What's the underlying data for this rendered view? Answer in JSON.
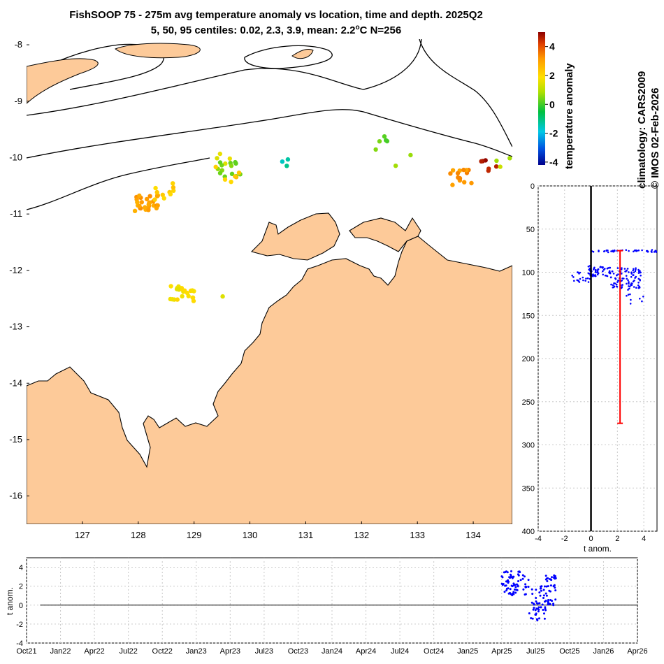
{
  "title": {
    "line1": "FishSOOP 75 - 275m avg temperature anomaly vs location, time and depth. 2025Q2",
    "line2_prefix": "5, 50, 95 centiles: 0.02, 2.3, 3.9, mean: 2.2",
    "line2_sup": "o",
    "line2_suffix": "C N=256"
  },
  "colorbar": {
    "label": "temperature anomaly",
    "ticks": [
      "4",
      "2",
      "0",
      "-2",
      "-4"
    ],
    "range": [
      -4.2,
      5
    ]
  },
  "side_text": {
    "climatology": "climatology: CARS2009",
    "copyright": "© IMOS 02-Feb-2026"
  },
  "chart_data": [
    {
      "type": "scatter",
      "name": "map",
      "x_ticks": [
        "127",
        "128",
        "129",
        "130",
        "131",
        "132",
        "133",
        "134"
      ],
      "y_ticks": [
        "-8",
        "-9",
        "-10",
        "-11",
        "-12",
        "-13",
        "-14",
        "-15",
        "-16"
      ],
      "xlim": [
        126,
        134.7
      ],
      "ylim": [
        -16.5,
        -7.9
      ],
      "clusters": [
        {
          "lon": 128.15,
          "lat": -10.8,
          "anomaly": 3.0,
          "n": 30
        },
        {
          "lon": 128.5,
          "lat": -10.6,
          "anomaly": 2.2,
          "n": 10
        },
        {
          "lon": 128.8,
          "lat": -12.4,
          "anomaly": 1.8,
          "n": 24
        },
        {
          "lon": 129.35,
          "lat": -12.55,
          "anomaly": 1.2,
          "n": 1
        },
        {
          "lon": 129.45,
          "lat": -10.05,
          "anomaly": 1.6,
          "n": 4
        },
        {
          "lon": 129.65,
          "lat": -10.2,
          "anomaly": 0.4,
          "n": 14
        },
        {
          "lon": 129.6,
          "lat": -10.3,
          "anomaly": 2.3,
          "n": 6
        },
        {
          "lon": 130.7,
          "lat": -10.13,
          "anomaly": -1.3,
          "n": 3
        },
        {
          "lon": 132.45,
          "lat": -9.72,
          "anomaly": 0.3,
          "n": 5
        },
        {
          "lon": 132.75,
          "lat": -10.02,
          "anomaly": 0.6,
          "n": 2
        },
        {
          "lon": 133.8,
          "lat": -10.35,
          "anomaly": 3.2,
          "n": 14
        },
        {
          "lon": 134.2,
          "lat": -10.1,
          "anomaly": 4.7,
          "n": 6
        },
        {
          "lon": 134.45,
          "lat": -10.03,
          "anomaly": 1.0,
          "n": 3
        }
      ]
    },
    {
      "type": "scatter",
      "name": "depth-profile",
      "xlabel": "t anom.",
      "ylabel": "",
      "xlim": [
        -4,
        5
      ],
      "ylim": [
        400,
        0
      ],
      "x_ticks": [
        "-4",
        "-2",
        "0",
        "2",
        "4"
      ],
      "y_ticks": [
        "0",
        "50",
        "100",
        "150",
        "200",
        "250",
        "300",
        "350",
        "400"
      ],
      "mean_bar": {
        "x": 2.2,
        "depth_top": 75,
        "depth_bottom": 275
      },
      "zero_line": 0,
      "point_groups": [
        {
          "x_range": [
            0,
            5
          ],
          "depth_range": [
            74,
            77
          ],
          "n": 40
        },
        {
          "x_range": [
            -0.2,
            1.5
          ],
          "depth_range": [
            92,
            105
          ],
          "n": 60
        },
        {
          "x_range": [
            1.5,
            3.8
          ],
          "depth_range": [
            95,
            120
          ],
          "n": 90
        },
        {
          "x_range": [
            -1.8,
            0.2
          ],
          "depth_range": [
            100,
            112
          ],
          "n": 20
        },
        {
          "x_range": [
            2.5,
            4
          ],
          "depth_range": [
            115,
            138
          ],
          "n": 10
        }
      ]
    },
    {
      "type": "scatter",
      "name": "time-series",
      "ylabel": "t anom.",
      "ylim": [
        -4,
        5
      ],
      "y_ticks": [
        "4",
        "2",
        "0",
        "-2",
        "-4"
      ],
      "x_ticks": [
        "Oct21",
        "Jan22",
        "Apr22",
        "Jul22",
        "Oct22",
        "Jan23",
        "Apr23",
        "Jul23",
        "Oct23",
        "Jan24",
        "Apr24",
        "Jul24",
        "Oct24",
        "Jan25",
        "Apr25",
        "Jul25",
        "Oct25",
        "Jan26",
        "Apr26"
      ],
      "zero_line": 0,
      "point_groups": [
        {
          "month_range": [
            14.0,
            14.8
          ],
          "y_range": [
            1.0,
            3.6
          ],
          "n": 70
        },
        {
          "month_range": [
            14.8,
            15.3
          ],
          "y_range": [
            -1.6,
            2.0
          ],
          "n": 50
        },
        {
          "month_range": [
            15.3,
            15.6
          ],
          "y_range": [
            0.0,
            3.2
          ],
          "n": 40
        }
      ]
    }
  ]
}
